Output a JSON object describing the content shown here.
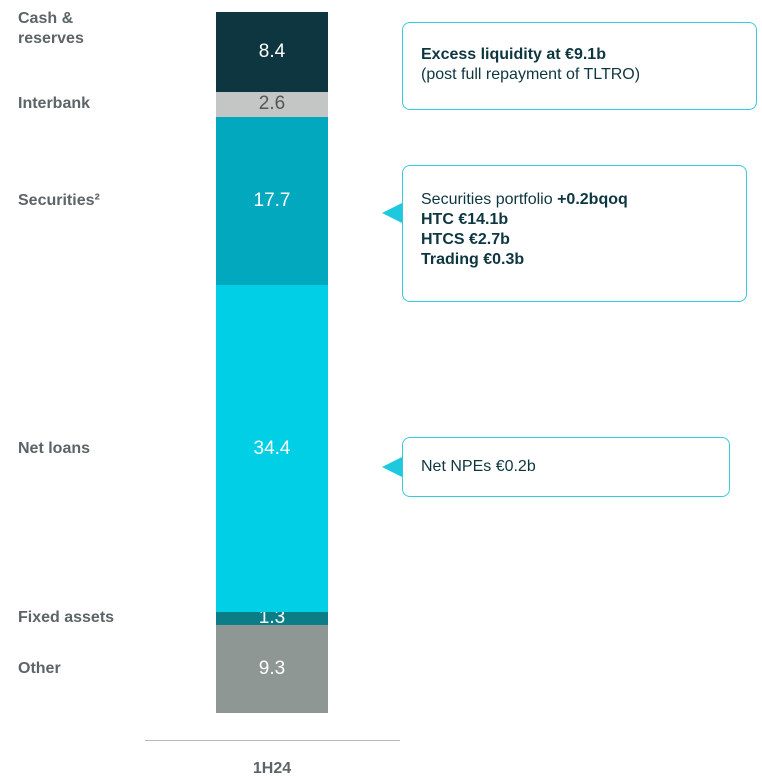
{
  "chart_data": {
    "type": "stacked_bar",
    "categories": [
      "1H24"
    ],
    "series": [
      {
        "name": "Other",
        "color": "#8f9794",
        "values": [
          9.3
        ]
      },
      {
        "name": "Fixed assets",
        "color": "#0a7d86",
        "values": [
          1.3
        ]
      },
      {
        "name": "Net loans",
        "color": "#00cfe6",
        "values": [
          34.4
        ]
      },
      {
        "name": "Securities²",
        "color": "#02a8bd",
        "values": [
          17.7
        ]
      },
      {
        "name": "Interbank",
        "color": "#c4c6c6",
        "values": [
          2.6
        ]
      },
      {
        "name": "Cash & reserves",
        "color": "#0e3640",
        "values": [
          8.4
        ]
      }
    ],
    "annotations": [
      {
        "title": "Excess liquidity at €9.1b",
        "text": "(post full repayment of TLTRO)"
      },
      {
        "text": "Securities portfolio",
        "highlight": "+0.2bqoq",
        "lines": [
          "HTC €14.1b",
          "HTCS €2.7b",
          "Trading €0.3b"
        ]
      },
      {
        "text": "Net NPEs €0.2b"
      }
    ]
  }
}
